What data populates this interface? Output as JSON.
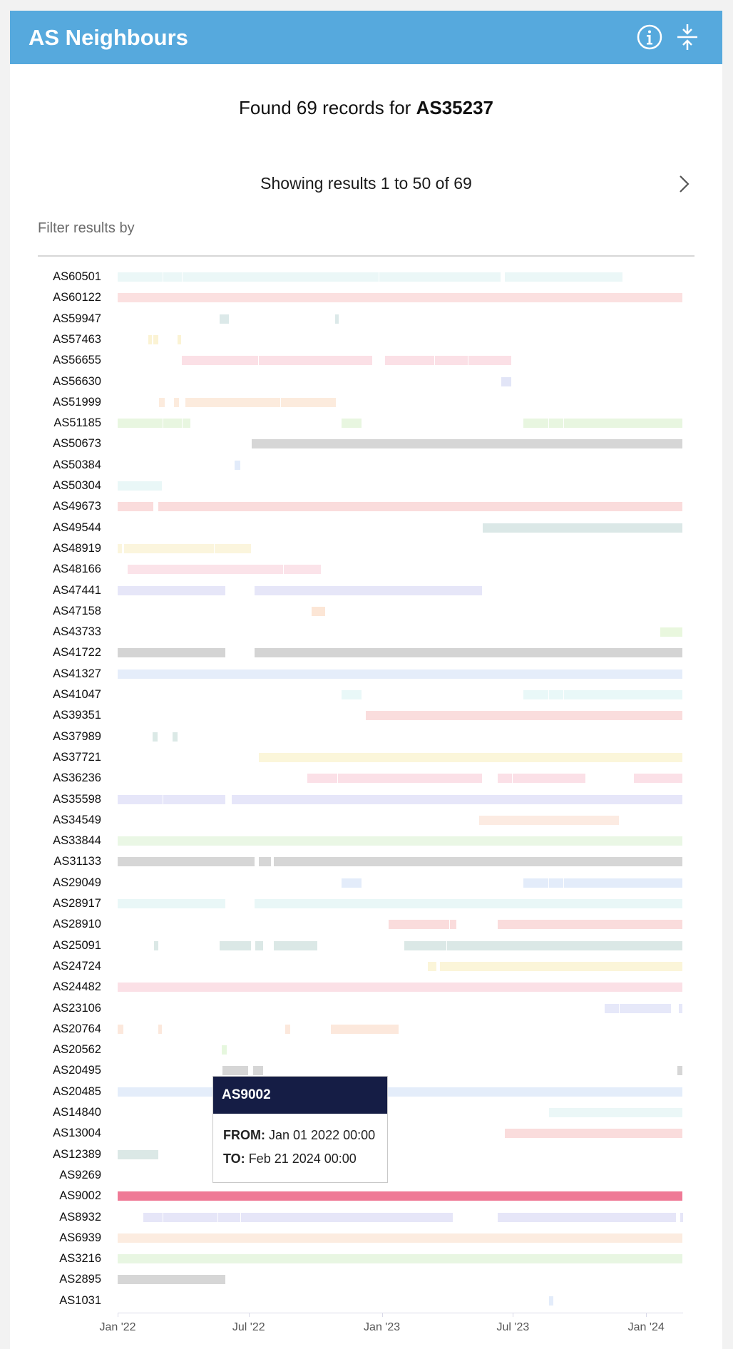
{
  "header": {
    "title": "AS Neighbours",
    "info_icon": "info-circle-icon",
    "collapse_icon": "collapse-vertical-icon",
    "color": "#56a9dd"
  },
  "summary": {
    "found_prefix": "Found 69 records for",
    "asn": "AS35237"
  },
  "pagination": {
    "showing": "Showing results 1 to 50 of 69",
    "next_icon": "chevron-right-icon"
  },
  "filter": {
    "label": "Filter results by"
  },
  "chart_data": {
    "type": "timeline",
    "x_ticks": [
      "Jan '22",
      "Jul '22",
      "Jan '23",
      "Jul '23",
      "Jan '24"
    ],
    "x_start": "2022-01-01",
    "x_end": "2024-02-21",
    "rows": [
      {
        "name": "AS60501",
        "color": "#ebf7f7",
        "segments": [
          [
            "2022-01-01",
            "2022-03-05"
          ],
          [
            "2022-03-05",
            "2022-04-01"
          ],
          [
            "2022-04-01",
            "2022-12-28"
          ],
          [
            "2022-12-28",
            "2023-06-15"
          ],
          [
            "2023-06-20",
            "2023-11-30"
          ]
        ]
      },
      {
        "name": "AS60122",
        "color": "#fbe0e0",
        "segments": [
          [
            "2022-01-01",
            "2024-02-21"
          ]
        ]
      },
      {
        "name": "AS59947",
        "color": "#dce9e9",
        "segments": [
          [
            "2022-05-22",
            "2022-06-05"
          ],
          [
            "2022-10-28",
            "2022-11-03"
          ]
        ]
      },
      {
        "name": "AS57463",
        "color": "#fbf3d4",
        "segments": [
          [
            "2022-02-12",
            "2022-02-18"
          ],
          [
            "2022-02-19",
            "2022-02-27"
          ],
          [
            "2022-03-25",
            "2022-03-31"
          ]
        ]
      },
      {
        "name": "AS56655",
        "color": "#fbe0e6",
        "segments": [
          [
            "2022-03-31",
            "2022-07-15"
          ],
          [
            "2022-07-15",
            "2022-12-20"
          ],
          [
            "2023-01-05",
            "2023-03-15"
          ],
          [
            "2023-03-15",
            "2023-05-01"
          ],
          [
            "2023-05-01",
            "2023-06-30"
          ]
        ]
      },
      {
        "name": "AS56630",
        "color": "#e2e5f7",
        "segments": [
          [
            "2023-06-15",
            "2023-06-30"
          ]
        ]
      },
      {
        "name": "AS51999",
        "color": "#fcebdd",
        "segments": [
          [
            "2022-02-27",
            "2022-03-08"
          ],
          [
            "2022-03-20",
            "2022-03-28"
          ],
          [
            "2022-04-05",
            "2022-08-15"
          ],
          [
            "2022-08-15",
            "2022-10-30"
          ]
        ]
      },
      {
        "name": "AS51185",
        "color": "#e8f6e0",
        "segments": [
          [
            "2022-01-01",
            "2022-03-05"
          ],
          [
            "2022-03-05",
            "2022-04-01"
          ],
          [
            "2022-04-01",
            "2022-04-12"
          ],
          [
            "2022-11-06",
            "2022-12-05"
          ],
          [
            "2023-07-15",
            "2023-08-20"
          ],
          [
            "2023-08-20",
            "2023-09-10"
          ],
          [
            "2023-09-10",
            "2024-02-21"
          ]
        ]
      },
      {
        "name": "AS50673",
        "color": "#d6d6d6",
        "segments": [
          [
            "2022-07-05",
            "2024-02-21"
          ]
        ]
      },
      {
        "name": "AS50384",
        "color": "#e2ebfa",
        "segments": [
          [
            "2022-06-12",
            "2022-06-20"
          ]
        ]
      },
      {
        "name": "AS50304",
        "color": "#e9f7f7",
        "segments": [
          [
            "2022-01-01",
            "2022-03-04"
          ]
        ]
      },
      {
        "name": "AS49673",
        "color": "#fadcdc",
        "segments": [
          [
            "2022-01-01",
            "2022-02-20"
          ],
          [
            "2022-02-26",
            "2024-02-21"
          ]
        ]
      },
      {
        "name": "AS49544",
        "color": "#dbe8e7",
        "segments": [
          [
            "2023-05-20",
            "2024-02-21"
          ]
        ]
      },
      {
        "name": "AS48919",
        "color": "#fbf5dd",
        "segments": [
          [
            "2022-01-01",
            "2022-01-08"
          ],
          [
            "2022-01-10",
            "2022-05-15"
          ],
          [
            "2022-05-15",
            "2022-07-05"
          ]
        ]
      },
      {
        "name": "AS48166",
        "color": "#fbe3e9",
        "segments": [
          [
            "2022-01-15",
            "2022-08-18"
          ],
          [
            "2022-08-18",
            "2022-10-10"
          ]
        ]
      },
      {
        "name": "AS47441",
        "color": "#e6e6f8",
        "segments": [
          [
            "2022-01-01",
            "2022-05-31"
          ],
          [
            "2022-07-09",
            "2023-05-20"
          ]
        ]
      },
      {
        "name": "AS47158",
        "color": "#fce6d6",
        "segments": [
          [
            "2022-09-26",
            "2022-10-16"
          ]
        ]
      },
      {
        "name": "AS43733",
        "color": "#e9f7de",
        "segments": [
          [
            "2024-01-20",
            "2024-02-21"
          ]
        ]
      },
      {
        "name": "AS41722",
        "color": "#d4d4d4",
        "segments": [
          [
            "2022-01-01",
            "2022-05-31"
          ],
          [
            "2022-07-09",
            "2024-02-21"
          ]
        ]
      },
      {
        "name": "AS41327",
        "color": "#e5edfa",
        "segments": [
          [
            "2022-01-01",
            "2024-02-21"
          ]
        ]
      },
      {
        "name": "AS41047",
        "color": "#e9f8f8",
        "segments": [
          [
            "2022-11-06",
            "2022-12-05"
          ],
          [
            "2023-07-15",
            "2023-08-20"
          ],
          [
            "2023-08-20",
            "2023-09-10"
          ],
          [
            "2023-09-10",
            "2024-02-21"
          ]
        ]
      },
      {
        "name": "AS39351",
        "color": "#fadddd",
        "segments": [
          [
            "2022-12-10",
            "2024-02-21"
          ]
        ]
      },
      {
        "name": "AS37989",
        "color": "#dbe9e6",
        "segments": [
          [
            "2022-02-18",
            "2022-02-26"
          ],
          [
            "2022-03-18",
            "2022-03-26"
          ]
        ]
      },
      {
        "name": "AS37721",
        "color": "#fbf6da",
        "segments": [
          [
            "2022-07-15",
            "2024-02-21"
          ]
        ]
      },
      {
        "name": "AS36236",
        "color": "#fbe0e7",
        "segments": [
          [
            "2022-09-20",
            "2022-11-01"
          ],
          [
            "2022-11-01",
            "2023-05-20"
          ],
          [
            "2023-06-10",
            "2023-07-01"
          ],
          [
            "2023-07-01",
            "2023-10-10"
          ],
          [
            "2023-12-15",
            "2024-02-21"
          ]
        ]
      },
      {
        "name": "AS35598",
        "color": "#e6e6f9",
        "segments": [
          [
            "2022-01-01",
            "2022-03-05"
          ],
          [
            "2022-03-05",
            "2022-05-31"
          ],
          [
            "2022-06-08",
            "2024-02-21"
          ]
        ]
      },
      {
        "name": "AS34549",
        "color": "#fcebe2",
        "segments": [
          [
            "2023-05-15",
            "2023-11-25"
          ]
        ]
      },
      {
        "name": "AS33844",
        "color": "#eaf7e5",
        "segments": [
          [
            "2022-01-01",
            "2024-02-21"
          ]
        ]
      },
      {
        "name": "AS31133",
        "color": "#d6d6d6",
        "segments": [
          [
            "2022-01-01",
            "2022-07-10"
          ],
          [
            "2022-07-15",
            "2022-08-02"
          ],
          [
            "2022-08-05",
            "2024-02-21"
          ]
        ]
      },
      {
        "name": "AS29049",
        "color": "#e3ecfa",
        "segments": [
          [
            "2022-11-06",
            "2022-12-05"
          ],
          [
            "2023-07-15",
            "2023-08-20"
          ],
          [
            "2023-08-20",
            "2023-09-10"
          ],
          [
            "2023-09-10",
            "2024-02-21"
          ]
        ]
      },
      {
        "name": "AS28917",
        "color": "#e9f7f7",
        "segments": [
          [
            "2022-01-01",
            "2022-05-31"
          ],
          [
            "2022-07-09",
            "2024-02-21"
          ]
        ]
      },
      {
        "name": "AS28910",
        "color": "#fadcdc",
        "segments": [
          [
            "2023-01-10",
            "2023-04-05"
          ],
          [
            "2023-04-05",
            "2023-04-15"
          ],
          [
            "2023-06-10",
            "2024-02-21"
          ]
        ]
      },
      {
        "name": "AS25091",
        "color": "#dbe8e6",
        "segments": [
          [
            "2022-02-20",
            "2022-02-27"
          ],
          [
            "2022-05-22",
            "2022-07-05"
          ],
          [
            "2022-07-10",
            "2022-07-22"
          ],
          [
            "2022-08-05",
            "2022-10-05"
          ],
          [
            "2023-02-01",
            "2023-04-01"
          ],
          [
            "2023-04-01",
            "2024-02-21"
          ]
        ]
      },
      {
        "name": "AS24724",
        "color": "#fbf5d9",
        "segments": [
          [
            "2023-03-05",
            "2023-03-18"
          ],
          [
            "2023-03-22",
            "2024-02-21"
          ]
        ]
      },
      {
        "name": "AS24482",
        "color": "#fbe0e6",
        "segments": [
          [
            "2022-01-01",
            "2024-02-21"
          ]
        ]
      },
      {
        "name": "AS23106",
        "color": "#e6e8f9",
        "segments": [
          [
            "2023-11-05",
            "2023-11-25"
          ],
          [
            "2023-11-25",
            "2024-02-05"
          ],
          [
            "2024-02-15",
            "2024-02-21"
          ]
        ]
      },
      {
        "name": "AS20764",
        "color": "#fce8dc",
        "segments": [
          [
            "2022-01-01",
            "2022-01-10"
          ],
          [
            "2022-02-26",
            "2022-03-04"
          ],
          [
            "2022-08-20",
            "2022-08-28"
          ],
          [
            "2022-10-22",
            "2023-01-25"
          ]
        ]
      },
      {
        "name": "AS20562",
        "color": "#e6f7de",
        "segments": [
          [
            "2022-05-25",
            "2022-06-02"
          ]
        ]
      },
      {
        "name": "AS20495",
        "color": "#d6d6d6",
        "segments": [
          [
            "2022-05-26",
            "2022-07-01"
          ],
          [
            "2022-07-07",
            "2022-07-22"
          ],
          [
            "2024-02-13",
            "2024-02-21"
          ]
        ]
      },
      {
        "name": "AS20485",
        "color": "#e4edfa",
        "segments": [
          [
            "2022-01-01",
            "2024-02-21"
          ]
        ]
      },
      {
        "name": "AS14840",
        "color": "#ebf7f7",
        "segments": [
          [
            "2023-08-20",
            "2024-02-21"
          ]
        ]
      },
      {
        "name": "AS13004",
        "color": "#fadcdc",
        "segments": [
          [
            "2023-06-20",
            "2024-02-21"
          ]
        ]
      },
      {
        "name": "AS12389",
        "color": "#dbe8e6",
        "segments": [
          [
            "2022-01-01",
            "2022-02-27"
          ]
        ]
      },
      {
        "name": "AS9269",
        "color": "#ffffff",
        "segments": []
      },
      {
        "name": "AS9002",
        "color": "#ef7a96",
        "segments": [
          [
            "2022-01-01",
            "2024-02-21"
          ]
        ]
      },
      {
        "name": "AS8932",
        "color": "#e6e6f8",
        "segments": [
          [
            "2022-02-05",
            "2022-03-05"
          ],
          [
            "2022-03-05",
            "2022-05-20"
          ],
          [
            "2022-05-20",
            "2022-06-20"
          ],
          [
            "2022-06-20",
            "2023-04-10"
          ],
          [
            "2023-06-10",
            "2024-02-12"
          ],
          [
            "2024-02-17",
            "2024-02-21"
          ]
        ]
      },
      {
        "name": "AS6939",
        "color": "#fcece0",
        "segments": [
          [
            "2022-01-01",
            "2024-02-21"
          ]
        ]
      },
      {
        "name": "AS3216",
        "color": "#e8f6e2",
        "segments": [
          [
            "2022-01-01",
            "2024-02-21"
          ]
        ]
      },
      {
        "name": "AS2895",
        "color": "#d6d6d6",
        "segments": [
          [
            "2022-01-01",
            "2022-05-31"
          ]
        ]
      },
      {
        "name": "AS1031",
        "color": "#e3ecfa",
        "segments": [
          [
            "2023-08-20",
            "2023-08-27"
          ]
        ]
      }
    ]
  },
  "tooltip": {
    "title": "AS9002",
    "from_label": "FROM:",
    "from_value": "Jan 01 2022 00:00",
    "to_label": "TO:",
    "to_value": "Feb 21 2024 00:00"
  }
}
